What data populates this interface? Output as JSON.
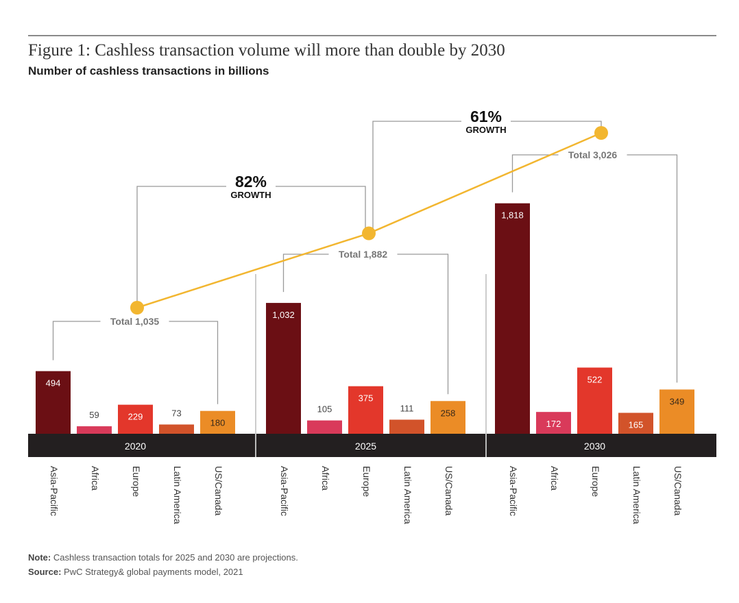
{
  "title": "Figure 1: Cashless transaction volume will more than double by 2030",
  "subtitle": "Number of cashless transactions in billions",
  "note_label": "Note:",
  "note_text": "Cashless transaction totals for 2025 and 2030 are projections.",
  "source_label": "Source:",
  "source_text": "PwC Strategy& global payments model, 2021",
  "chart_data": {
    "type": "bar",
    "title": "Figure 1: Cashless transaction volume will more than double by 2030",
    "ylabel": "Number of cashless transactions in billions",
    "categories": [
      "Asia-Pacific",
      "Africa",
      "Europe",
      "Latin America",
      "US/Canada"
    ],
    "category_colors": [
      "#6b0f14",
      "#d93a5a",
      "#e3372b",
      "#d2532a",
      "#eb8c26"
    ],
    "groups": [
      {
        "year": "2020",
        "values": [
          494,
          59,
          229,
          73,
          180
        ],
        "total": 1035,
        "total_label": "Total 1,035"
      },
      {
        "year": "2025",
        "values": [
          1032,
          105,
          375,
          111,
          258
        ],
        "total": 1882,
        "total_label": "Total 1,882"
      },
      {
        "year": "2030",
        "values": [
          1818,
          172,
          522,
          165,
          349
        ],
        "total": 3026,
        "total_label": "Total 3,026"
      }
    ],
    "value_labels": [
      [
        "494",
        "59",
        "229",
        "73",
        "180"
      ],
      [
        "1,032",
        "105",
        "375",
        "111",
        "258"
      ],
      [
        "1,818",
        "172",
        "522",
        "165",
        "349"
      ]
    ],
    "total_line_color": "#f2b630",
    "growth": [
      {
        "pct": "82%",
        "label": "GROWTH"
      },
      {
        "pct": "61%",
        "label": "GROWTH"
      }
    ],
    "grid": false
  }
}
